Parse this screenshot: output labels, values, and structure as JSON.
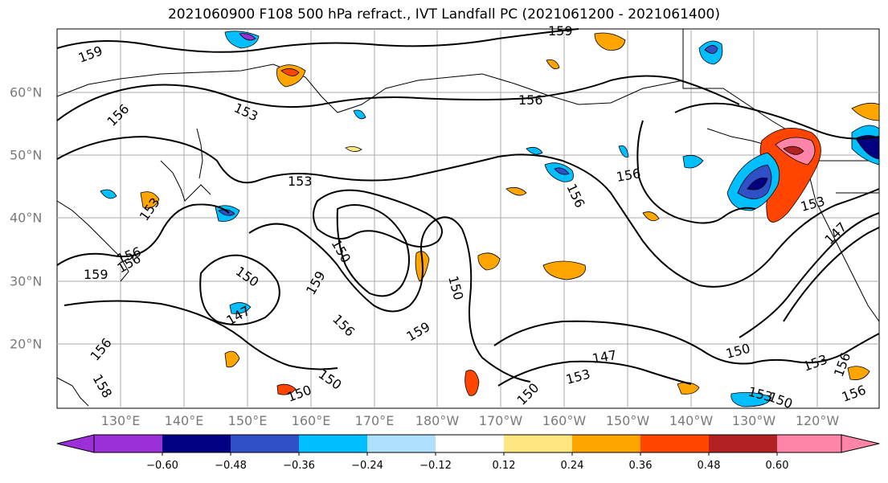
{
  "title": "2021060900 F108 500 hPa refract., IVT Landfall PC (2021061200 - 2021061400)",
  "map": {
    "lon_labels": [
      "130°E",
      "140°E",
      "150°E",
      "160°E",
      "170°E",
      "180°W",
      "170°W",
      "160°W",
      "150°W",
      "140°W",
      "130°W",
      "120°W"
    ],
    "lat_labels": [
      "60°N",
      "50°N",
      "40°N",
      "30°N",
      "20°N"
    ],
    "contour_labels": [
      "159",
      "159",
      "156",
      "153",
      "156",
      "153",
      "153",
      "156",
      "156",
      "150",
      "159",
      "150",
      "150",
      "156",
      "159",
      "156",
      "147",
      "150",
      "159",
      "147",
      "156",
      "153",
      "150",
      "153",
      "150",
      "156",
      "150",
      "153",
      "147",
      "153",
      "150",
      "156",
      "156",
      "158"
    ]
  },
  "colorbar": {
    "tick_labels": [
      "−0.60",
      "−0.48",
      "−0.36",
      "−0.24",
      "−0.12",
      "0.12",
      "0.24",
      "0.36",
      "0.48",
      "0.60"
    ],
    "colors": [
      "#9b30d9",
      "#000080",
      "#3050c8",
      "#00bfff",
      "#b0e0ff",
      "#ffffff",
      "#ffe680",
      "#ffa500",
      "#ff4500",
      "#b22222",
      "#ff85a8",
      "#ff85a8"
    ]
  }
}
